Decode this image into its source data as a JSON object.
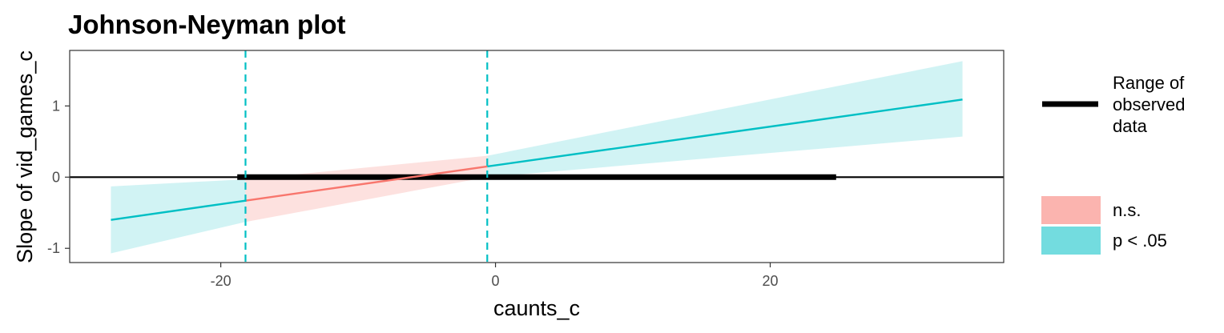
{
  "chart_data": {
    "type": "line",
    "title": "Johnson-Neyman plot",
    "xlabel": "caunts_c",
    "ylabel": "Slope of vid_games_c",
    "xlim": [
      -31,
      37
    ],
    "ylim": [
      -1.2,
      1.78
    ],
    "x_ticks": [
      -20,
      0,
      20
    ],
    "x_tick_labels": [
      "-20",
      "0",
      "20"
    ],
    "y_ticks": [
      -1,
      0,
      1
    ],
    "y_tick_labels": [
      "-1",
      "0",
      "1"
    ],
    "grid": false,
    "legend_position": "right",
    "colors": {
      "significant": "#00BFC4",
      "not_significant": "#F8766D",
      "observed_range": "#000000"
    },
    "series": [
      {
        "name": "p < .05",
        "segments": [
          {
            "x": [
              -28,
              -18.2
            ],
            "y": [
              -0.6,
              -0.33
            ],
            "lower": [
              -1.07,
              -0.63
            ],
            "upper": [
              -0.13,
              -0.03
            ]
          },
          {
            "x": [
              -0.6,
              34
            ],
            "y": [
              0.15,
              1.09
            ],
            "lower": [
              0.0,
              0.57
            ],
            "upper": [
              0.3,
              1.63
            ]
          }
        ]
      },
      {
        "name": "n.s.",
        "segments": [
          {
            "x": [
              -18.2,
              -0.6
            ],
            "y": [
              -0.33,
              0.15
            ],
            "lower": [
              -0.63,
              0.0
            ],
            "upper": [
              -0.03,
              0.3
            ]
          }
        ]
      }
    ],
    "jn_points": [
      -18.2,
      -0.6
    ],
    "observed_range": {
      "label": "Range of observed data",
      "x": [
        -18.8,
        24.8
      ]
    },
    "legend": {
      "line_label_lines": [
        "Range of",
        "observed",
        "data"
      ],
      "fill_items": [
        {
          "label": "n.s.",
          "color": "#F8766D"
        },
        {
          "label": "p < .05",
          "color": "#00BFC4"
        }
      ]
    }
  }
}
